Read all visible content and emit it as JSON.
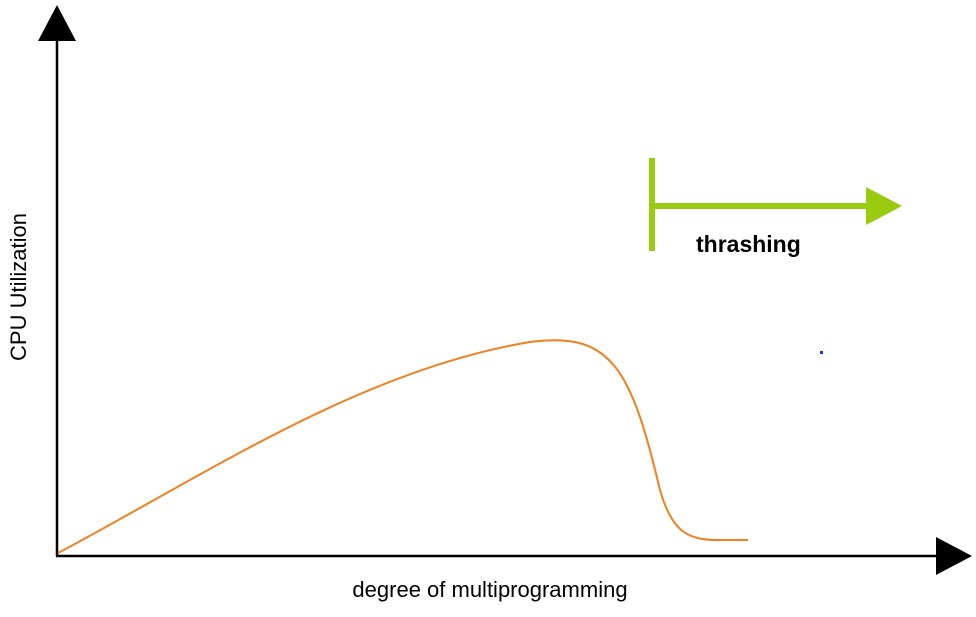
{
  "diagram": {
    "x_axis_label": "degree of multiprogramming",
    "y_axis_label": "CPU Utilization",
    "thrashing_label": "thrashing"
  },
  "colors": {
    "axis": "#000000",
    "curve": "#f08020",
    "thrashing_marker": "#99cc11",
    "stray_dot": "#2233cc"
  }
}
